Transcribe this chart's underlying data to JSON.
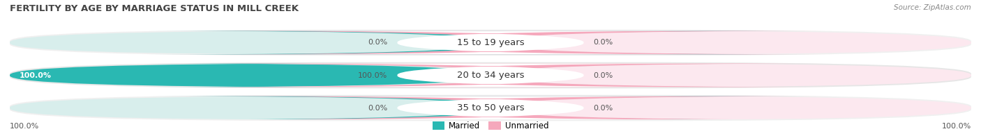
{
  "title": "FERTILITY BY AGE BY MARRIAGE STATUS IN MILL CREEK",
  "source": "Source: ZipAtlas.com",
  "rows": [
    {
      "label": "15 to 19 years",
      "married": 0.0,
      "unmarried": 0.0
    },
    {
      "label": "20 to 34 years",
      "married": 100.0,
      "unmarried": 0.0
    },
    {
      "label": "35 to 50 years",
      "married": 0.0,
      "unmarried": 0.0
    }
  ],
  "married_color": "#2ab8b2",
  "unmarried_color": "#f5a8bc",
  "bar_bg_married": "#d8eeec",
  "bar_bg_unmarried": "#fce8ef",
  "row_bg_odd": "#f0f0f0",
  "row_bg_even": "#e6e6e6",
  "label_text_color": "#333333",
  "title_color": "#444444",
  "source_color": "#888888",
  "value_color": "#555555",
  "legend_married": "Married",
  "legend_unmarried": "Unmarried",
  "left_extreme_label": "100.0%",
  "right_extreme_label": "100.0%",
  "figsize": [
    14.06,
    1.96
  ],
  "dpi": 100
}
